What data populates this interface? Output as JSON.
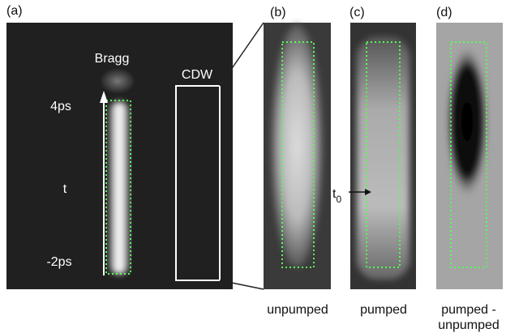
{
  "panels": [
    {
      "label": "(a)",
      "bragg": "Bragg",
      "cdw": "CDW",
      "time_top": "4ps",
      "time_axis": "t",
      "time_bottom": "-2ps"
    },
    {
      "label": "(b)",
      "caption": "unpumped"
    },
    {
      "label": "(c)",
      "caption": "pumped",
      "marker": "t",
      "marker_subscript": "0"
    },
    {
      "label": "(d)",
      "caption_lines": [
        "pumped -",
        "unpumped"
      ]
    }
  ]
}
